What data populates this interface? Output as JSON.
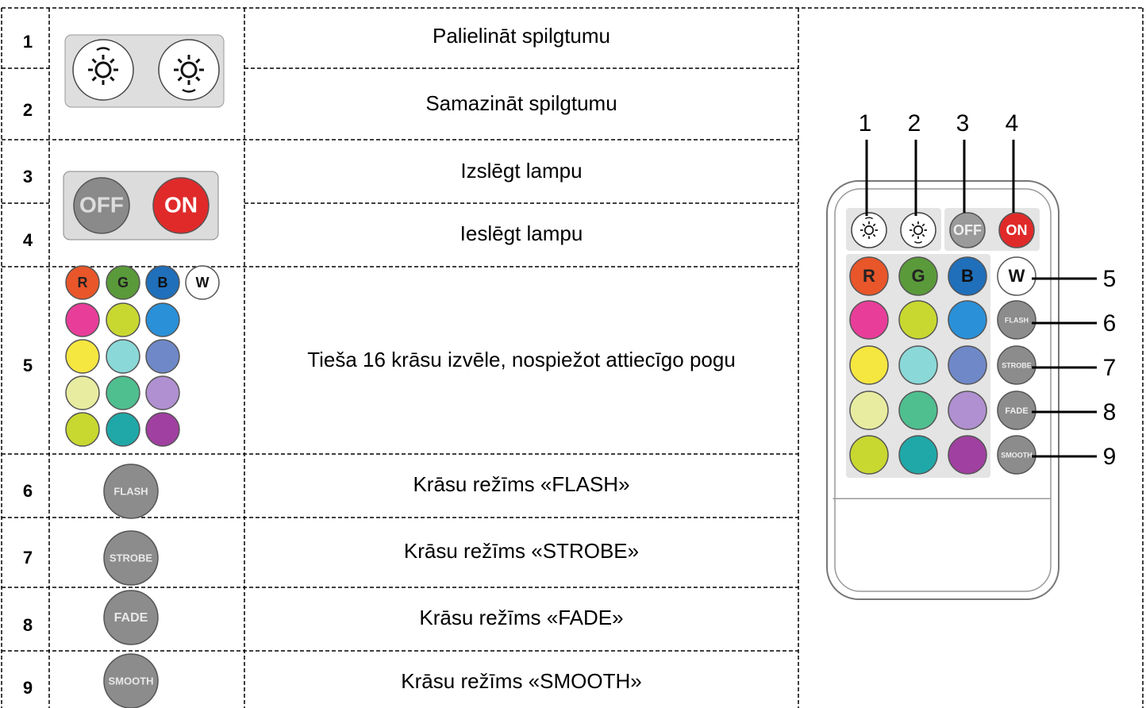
{
  "table": {
    "rows": [
      {
        "number": "1",
        "description": "Palielināt spilgtumu"
      },
      {
        "number": "2",
        "description": "Samazināt spilgtumu"
      },
      {
        "number": "3",
        "description": "Izslēgt lampu"
      },
      {
        "number": "4",
        "description": "Ieslēgt lampu"
      },
      {
        "number": "5",
        "description": "Tieša 16 krāsu izvēle, nospiežot attiecīgo pogu"
      },
      {
        "number": "6",
        "description": "Krāsu režīms «FLASH»"
      },
      {
        "number": "7",
        "description": "Krāsu režīms «STROBE»"
      },
      {
        "number": "8",
        "description": "Krāsu režīms «FADE»"
      },
      {
        "number": "9",
        "description": "Krāsu režīms «SMOOTH»"
      }
    ]
  },
  "buttons": {
    "off": "OFF",
    "on": "ON",
    "r": "R",
    "g": "G",
    "b": "B",
    "w": "W",
    "flash": "FLASH",
    "strobe": "STROBE",
    "fade": "FADE",
    "smooth": "SMOOTH"
  },
  "remote": {
    "callouts": [
      "1",
      "2",
      "3",
      "4",
      "5",
      "6",
      "7",
      "8",
      "9"
    ]
  }
}
